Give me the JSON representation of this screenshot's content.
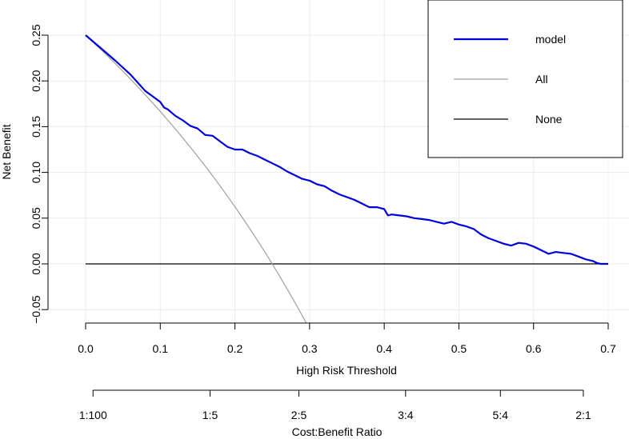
{
  "chart_data": {
    "type": "line",
    "xlabel": "High Risk Threshold",
    "ylabel": "Net Benefit",
    "xlim": [
      0,
      0.7
    ],
    "ylim": [
      -0.065,
      0.25
    ],
    "xticks": [
      0.0,
      0.1,
      0.2,
      0.3,
      0.4,
      0.5,
      0.6,
      0.7
    ],
    "xtick_labels": [
      "0.0",
      "0.1",
      "0.2",
      "0.3",
      "0.4",
      "0.5",
      "0.6",
      "0.7"
    ],
    "yticks": [
      -0.05,
      0.0,
      0.05,
      0.1,
      0.15,
      0.2,
      0.25
    ],
    "ytick_labels": [
      "−0.05",
      "0.00",
      "0.05",
      "0.10",
      "0.15",
      "0.20",
      "0.25"
    ],
    "grid": true,
    "legend_position": "top-right",
    "secondary_axis": {
      "label": "Cost:Benefit Ratio",
      "ticks": [
        {
          "threshold": 0.0099,
          "label": "1:100"
        },
        {
          "threshold": 0.1667,
          "label": "1:5"
        },
        {
          "threshold": 0.2857,
          "label": "2:5"
        },
        {
          "threshold": 0.4286,
          "label": "3:4"
        },
        {
          "threshold": 0.5556,
          "label": "5:4"
        },
        {
          "threshold": 0.6667,
          "label": "2:1"
        }
      ]
    },
    "series": [
      {
        "name": "model",
        "color": "#0000dd",
        "x": [
          0.0,
          0.02,
          0.04,
          0.06,
          0.07,
          0.08,
          0.09,
          0.1,
          0.105,
          0.11,
          0.12,
          0.13,
          0.14,
          0.15,
          0.16,
          0.17,
          0.18,
          0.19,
          0.2,
          0.21,
          0.22,
          0.23,
          0.24,
          0.25,
          0.26,
          0.27,
          0.28,
          0.29,
          0.3,
          0.31,
          0.32,
          0.33,
          0.34,
          0.35,
          0.36,
          0.37,
          0.38,
          0.39,
          0.4,
          0.405,
          0.41,
          0.42,
          0.43,
          0.44,
          0.45,
          0.46,
          0.47,
          0.48,
          0.49,
          0.5,
          0.51,
          0.52,
          0.53,
          0.54,
          0.55,
          0.56,
          0.57,
          0.58,
          0.59,
          0.6,
          0.61,
          0.62,
          0.63,
          0.64,
          0.65,
          0.66,
          0.67,
          0.68,
          0.685,
          0.69,
          0.7
        ],
        "y": [
          0.25,
          0.236,
          0.222,
          0.207,
          0.198,
          0.189,
          0.183,
          0.177,
          0.171,
          0.169,
          0.162,
          0.157,
          0.151,
          0.148,
          0.141,
          0.14,
          0.134,
          0.128,
          0.125,
          0.125,
          0.121,
          0.118,
          0.114,
          0.11,
          0.106,
          0.101,
          0.097,
          0.093,
          0.091,
          0.087,
          0.085,
          0.08,
          0.076,
          0.073,
          0.07,
          0.066,
          0.062,
          0.062,
          0.06,
          0.053,
          0.054,
          0.053,
          0.052,
          0.05,
          0.049,
          0.048,
          0.046,
          0.044,
          0.046,
          0.043,
          0.041,
          0.038,
          0.032,
          0.028,
          0.025,
          0.022,
          0.02,
          0.023,
          0.022,
          0.019,
          0.015,
          0.011,
          0.013,
          0.012,
          0.011,
          0.008,
          0.005,
          0.003,
          0.001,
          0.0,
          0.0
        ]
      },
      {
        "name": "All",
        "color": "#a0a0a0",
        "formula": "0.25 - 0.75*t/(1-t)",
        "x": [
          0.0,
          0.02,
          0.04,
          0.06,
          0.08,
          0.1,
          0.12,
          0.14,
          0.16,
          0.18,
          0.2,
          0.22,
          0.24,
          0.25,
          0.26,
          0.28,
          0.29,
          0.3
        ],
        "y": [
          0.25,
          0.2347,
          0.2188,
          0.2021,
          0.1848,
          0.1667,
          0.1477,
          0.1279,
          0.1071,
          0.0854,
          0.0625,
          0.0385,
          0.0132,
          0.0,
          -0.0135,
          -0.0417,
          -0.0563,
          -0.0714
        ]
      },
      {
        "name": "None",
        "color": "#000000",
        "x": [
          0.0,
          0.7
        ],
        "y": [
          0.0,
          0.0
        ]
      }
    ]
  }
}
